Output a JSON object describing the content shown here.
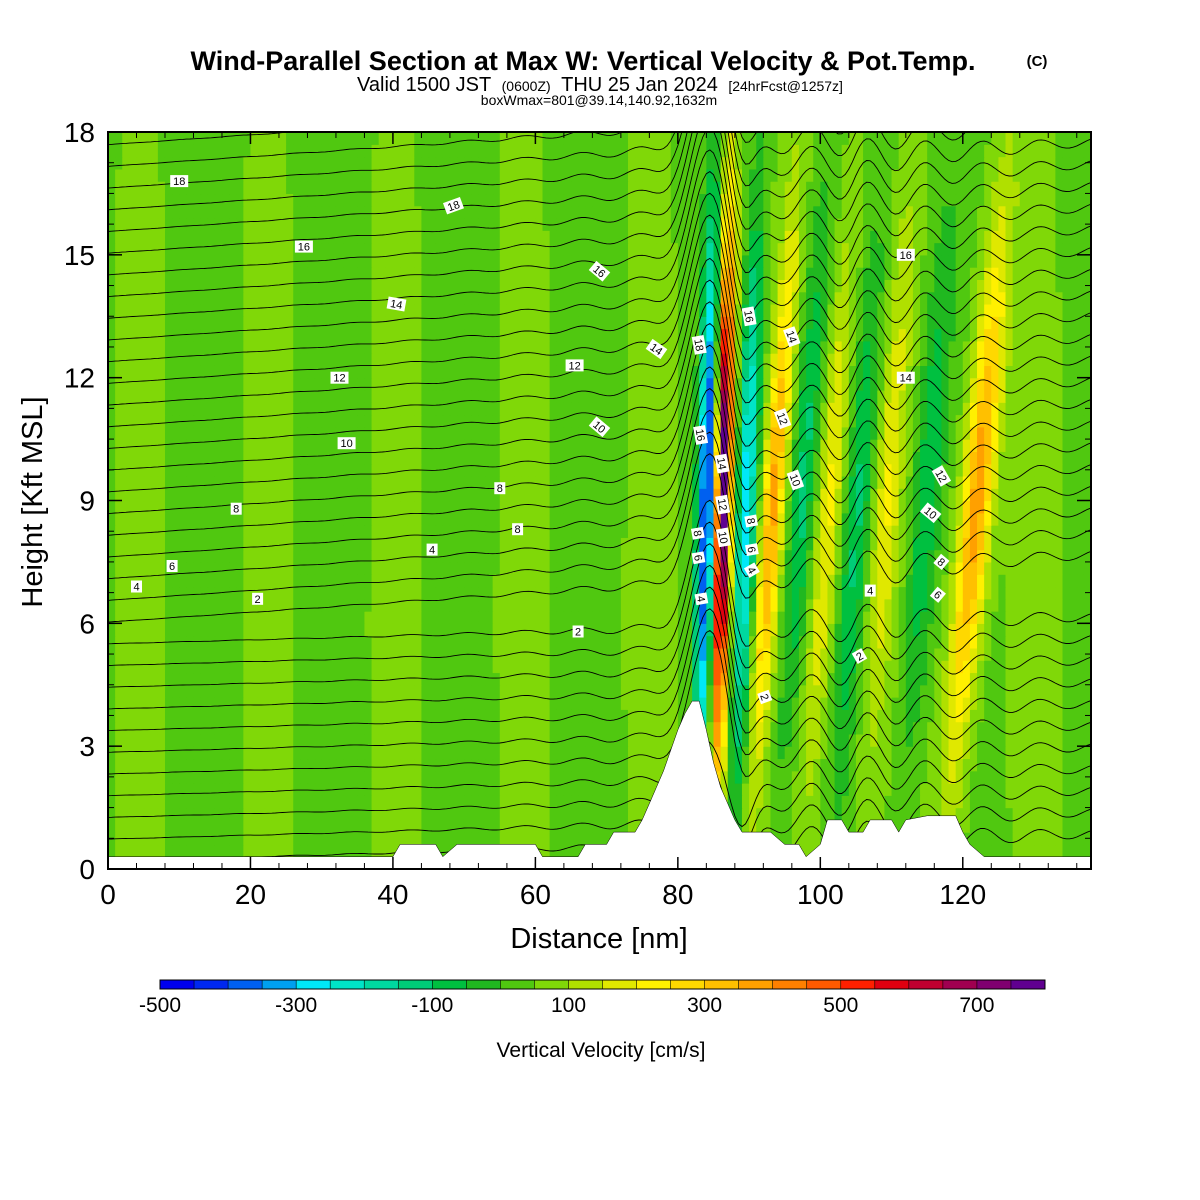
{
  "title": {
    "main": "Wind-Parallel Section at Max W: Vertical Velocity & Pot.Temp.",
    "copyright": "(C)",
    "valid_prefix": "Valid 1500 JST",
    "valid_z": "(0600Z)",
    "valid_date": "THU 25 Jan 2024",
    "forecast": "[24hrFcst@1257z]",
    "boxmax": "boxWmax=801@39.14,140.92,1632m"
  },
  "chart_data": {
    "type": "heatmap",
    "xlabel": "Distance [nm]",
    "ylabel": "Height [Kft MSL]",
    "xlim": [
      0,
      138
    ],
    "ylim": [
      0,
      18
    ],
    "x_ticks": [
      0,
      20,
      40,
      60,
      80,
      100,
      120
    ],
    "y_ticks": [
      0,
      3,
      6,
      9,
      12,
      15,
      18
    ],
    "grid": false,
    "colorbar": {
      "label": "Vertical Velocity [cm/s]",
      "placement": "bottom",
      "min": -500,
      "max": 800,
      "step": 50,
      "tick_values": [
        -500,
        -300,
        -100,
        100,
        300,
        500,
        700
      ],
      "tick_labels": [
        "-500",
        "-300",
        "-100",
        "100",
        "300",
        "500",
        "700"
      ],
      "colors": [
        "#0000ee",
        "#0028f0",
        "#0060f0",
        "#00a0f0",
        "#00e8f8",
        "#00e4c8",
        "#00d8a0",
        "#00cc78",
        "#00c040",
        "#20b820",
        "#50c810",
        "#80d808",
        "#b0e000",
        "#e0e800",
        "#fff000",
        "#ffd800",
        "#ffc000",
        "#ffa000",
        "#ff8000",
        "#ff5a00",
        "#ff2000",
        "#e00010",
        "#c00030",
        "#a00050",
        "#800070",
        "#600090"
      ]
    },
    "updraft_bands": [
      {
        "x": 86.2,
        "w_peak": 801,
        "halfwidth": 1.2,
        "tilt": 0.12
      },
      {
        "x": 93.0,
        "w_peak": 300,
        "halfwidth": 1.5,
        "tilt": 0.4
      },
      {
        "x": 101.0,
        "w_peak": 180,
        "halfwidth": 1.7,
        "tilt": 0.4
      },
      {
        "x": 109.0,
        "w_peak": 150,
        "halfwidth": 1.8,
        "tilt": 0.4
      },
      {
        "x": 121.5,
        "w_peak": 350,
        "halfwidth": 2.2,
        "tilt": 0.5
      }
    ],
    "downdraft_bands": [
      {
        "x": 84.0,
        "w_min": -500,
        "halfwidth": 1.3,
        "tilt": 0.12
      },
      {
        "x": 89.5,
        "w_min": -330,
        "halfwidth": 1.4,
        "tilt": 0.2
      },
      {
        "x": 97.0,
        "w_min": -170,
        "halfwidth": 1.7,
        "tilt": 0.4
      },
      {
        "x": 105.0,
        "w_min": -140,
        "halfwidth": 1.8,
        "tilt": 0.4
      },
      {
        "x": 114.5,
        "w_min": -150,
        "halfwidth": 2.0,
        "tilt": 0.4
      }
    ],
    "terrain": [
      [
        0,
        0.3
      ],
      [
        40,
        0.3
      ],
      [
        41,
        0.6
      ],
      [
        46,
        0.6
      ],
      [
        47,
        0.3
      ],
      [
        49,
        0.6
      ],
      [
        60,
        0.6
      ],
      [
        61,
        0.3
      ],
      [
        66,
        0.3
      ],
      [
        67,
        0.6
      ],
      [
        70,
        0.6
      ],
      [
        71,
        0.9
      ],
      [
        74,
        0.9
      ],
      [
        75,
        1.2
      ],
      [
        76,
        1.6
      ],
      [
        77,
        2.0
      ],
      [
        78,
        2.4
      ],
      [
        79,
        2.9
      ],
      [
        80,
        3.4
      ],
      [
        81,
        3.8
      ],
      [
        82,
        4.1
      ],
      [
        83,
        4.1
      ],
      [
        84,
        3.4
      ],
      [
        85,
        2.6
      ],
      [
        86,
        2.0
      ],
      [
        87,
        1.6
      ],
      [
        88,
        1.2
      ],
      [
        89,
        0.9
      ],
      [
        93,
        0.9
      ],
      [
        95,
        0.6
      ],
      [
        97,
        0.6
      ],
      [
        98,
        0.3
      ],
      [
        100,
        0.6
      ],
      [
        101,
        1.2
      ],
      [
        103,
        1.2
      ],
      [
        104,
        0.9
      ],
      [
        106,
        0.9
      ],
      [
        107,
        1.2
      ],
      [
        110,
        1.2
      ],
      [
        111,
        0.9
      ],
      [
        112,
        1.2
      ],
      [
        115,
        1.3
      ],
      [
        119,
        1.3
      ],
      [
        120,
        0.9
      ],
      [
        121,
        0.6
      ],
      [
        123,
        0.3
      ],
      [
        138,
        0.3
      ]
    ],
    "theta_contour_labels": [
      {
        "text": "18",
        "x": 10,
        "y": 16.8,
        "angle": 0
      },
      {
        "text": "16",
        "x": 27.5,
        "y": 15.2,
        "angle": 0
      },
      {
        "text": "14",
        "x": 40.5,
        "y": 13.8,
        "angle": 10
      },
      {
        "text": "12",
        "x": 32.5,
        "y": 12.0,
        "angle": 0
      },
      {
        "text": "10",
        "x": 33.5,
        "y": 10.4,
        "angle": 0
      },
      {
        "text": "8",
        "x": 18,
        "y": 8.8,
        "angle": 0
      },
      {
        "text": "6",
        "x": 9,
        "y": 7.4,
        "angle": 0
      },
      {
        "text": "4",
        "x": 4,
        "y": 6.9,
        "angle": 0
      },
      {
        "text": "2",
        "x": 21,
        "y": 6.6,
        "angle": 0
      },
      {
        "text": "18",
        "x": 48.5,
        "y": 16.2,
        "angle": -20
      },
      {
        "text": "16",
        "x": 69,
        "y": 14.6,
        "angle": 40
      },
      {
        "text": "14",
        "x": 77,
        "y": 12.7,
        "angle": 35
      },
      {
        "text": "12",
        "x": 65.5,
        "y": 12.3,
        "angle": 0
      },
      {
        "text": "10",
        "x": 69,
        "y": 10.8,
        "angle": 40
      },
      {
        "text": "8",
        "x": 55,
        "y": 9.3,
        "angle": 0
      },
      {
        "text": "8",
        "x": 57.5,
        "y": 8.3,
        "angle": 0
      },
      {
        "text": "4",
        "x": 45.5,
        "y": 7.8,
        "angle": 0
      },
      {
        "text": "2",
        "x": 66,
        "y": 5.8,
        "angle": 0
      },
      {
        "text": "18",
        "x": 83,
        "y": 12.8,
        "angle": 80
      },
      {
        "text": "16",
        "x": 83.2,
        "y": 10.6,
        "angle": 80
      },
      {
        "text": "16",
        "x": 90,
        "y": 13.5,
        "angle": 80
      },
      {
        "text": "14",
        "x": 86.2,
        "y": 9.9,
        "angle": 80
      },
      {
        "text": "12",
        "x": 86.3,
        "y": 8.9,
        "angle": 80
      },
      {
        "text": "10",
        "x": 86.4,
        "y": 8.1,
        "angle": 80
      },
      {
        "text": "8",
        "x": 82.8,
        "y": 8.2,
        "angle": 80
      },
      {
        "text": "6",
        "x": 82.9,
        "y": 7.6,
        "angle": 80
      },
      {
        "text": "4",
        "x": 83.3,
        "y": 6.6,
        "angle": 80
      },
      {
        "text": "8",
        "x": 90.3,
        "y": 8.5,
        "angle": 80
      },
      {
        "text": "6",
        "x": 90.4,
        "y": 7.8,
        "angle": 80
      },
      {
        "text": "4",
        "x": 90.4,
        "y": 7.3,
        "angle": 60
      },
      {
        "text": "2",
        "x": 92.2,
        "y": 4.2,
        "angle": 70
      },
      {
        "text": "14",
        "x": 96,
        "y": 13.0,
        "angle": 70
      },
      {
        "text": "12",
        "x": 94.7,
        "y": 11.0,
        "angle": 70
      },
      {
        "text": "10",
        "x": 96.5,
        "y": 9.5,
        "angle": 70
      },
      {
        "text": "16",
        "x": 112,
        "y": 15.0,
        "angle": 0
      },
      {
        "text": "14",
        "x": 112,
        "y": 12.0,
        "angle": 0
      },
      {
        "text": "12",
        "x": 117,
        "y": 9.6,
        "angle": 60
      },
      {
        "text": "10",
        "x": 115.5,
        "y": 8.7,
        "angle": 40
      },
      {
        "text": "8",
        "x": 117,
        "y": 7.5,
        "angle": 40
      },
      {
        "text": "6",
        "x": 116.5,
        "y": 6.7,
        "angle": 40
      },
      {
        "text": "4",
        "x": 107,
        "y": 6.8,
        "angle": 0
      },
      {
        "text": "2",
        "x": 105.5,
        "y": 5.2,
        "angle": -30
      }
    ]
  }
}
